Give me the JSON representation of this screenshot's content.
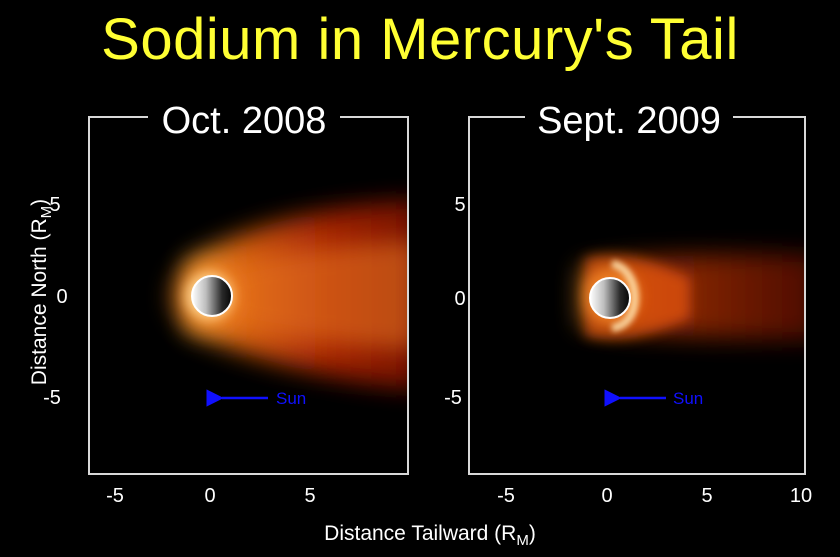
{
  "title": "Sodium in Mercury's Tail",
  "xlabel": {
    "base": "Distance Tailward (R",
    "sub": "M",
    "end": ")"
  },
  "ylabel": {
    "base": "Distance North (R",
    "sub": "M",
    "end": ")"
  },
  "sun_label": "Sun",
  "colors": {
    "title": "#ffff33",
    "sun_arrow": "#1010ff",
    "frame": "#d8d8d8"
  },
  "panels": [
    {
      "title": "Oct. 2008",
      "x_ticks": [
        -5,
        0,
        5
      ],
      "y_ticks": [
        5,
        0,
        -5
      ],
      "xlim": [
        -6,
        10
      ],
      "ylim": [
        -9,
        9
      ],
      "tail": "long-broad"
    },
    {
      "title": "Sept. 2009",
      "x_ticks": [
        -5,
        0,
        5,
        10
      ],
      "y_ticks": [
        5,
        0,
        -5
      ],
      "xlim": [
        -6,
        10
      ],
      "ylim": [
        -9,
        9
      ],
      "tail": "short-narrow"
    }
  ]
}
